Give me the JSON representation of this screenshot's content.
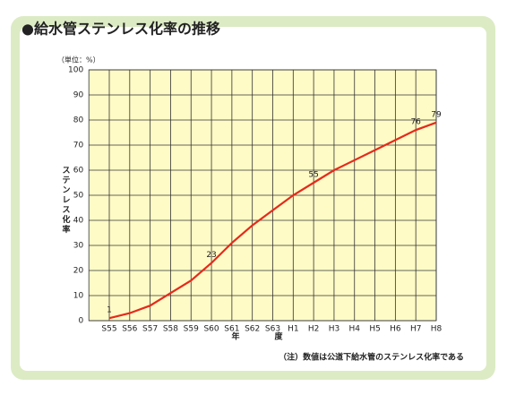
{
  "chart_data": {
    "type": "line",
    "title": "●給水管ステンレス化率の推移",
    "unit_label": "（単位：%）",
    "y_label": "ステンレス化率",
    "x_label": [
      "年",
      "度"
    ],
    "note": "（注）数値は公道下給水管のステンレス化率である",
    "categories": [
      "S55",
      "S56",
      "S57",
      "S58",
      "S59",
      "S60",
      "S61",
      "S62",
      "S63",
      "H1",
      "H2",
      "H3",
      "H4",
      "H5",
      "H6",
      "H7",
      "H8"
    ],
    "values": [
      1,
      3,
      6,
      11,
      16,
      23,
      31,
      38,
      44,
      50,
      55,
      60,
      64,
      68,
      72,
      76,
      79
    ],
    "value_labels": [
      "1",
      null,
      null,
      null,
      null,
      "23",
      null,
      null,
      null,
      null,
      "55",
      null,
      null,
      null,
      null,
      "76",
      "79"
    ],
    "color": "#e52a1c",
    "ylim": [
      0,
      100
    ],
    "yticks": [
      0,
      10,
      20,
      30,
      40,
      50,
      60,
      70,
      80,
      90,
      100
    ],
    "grid": true
  }
}
